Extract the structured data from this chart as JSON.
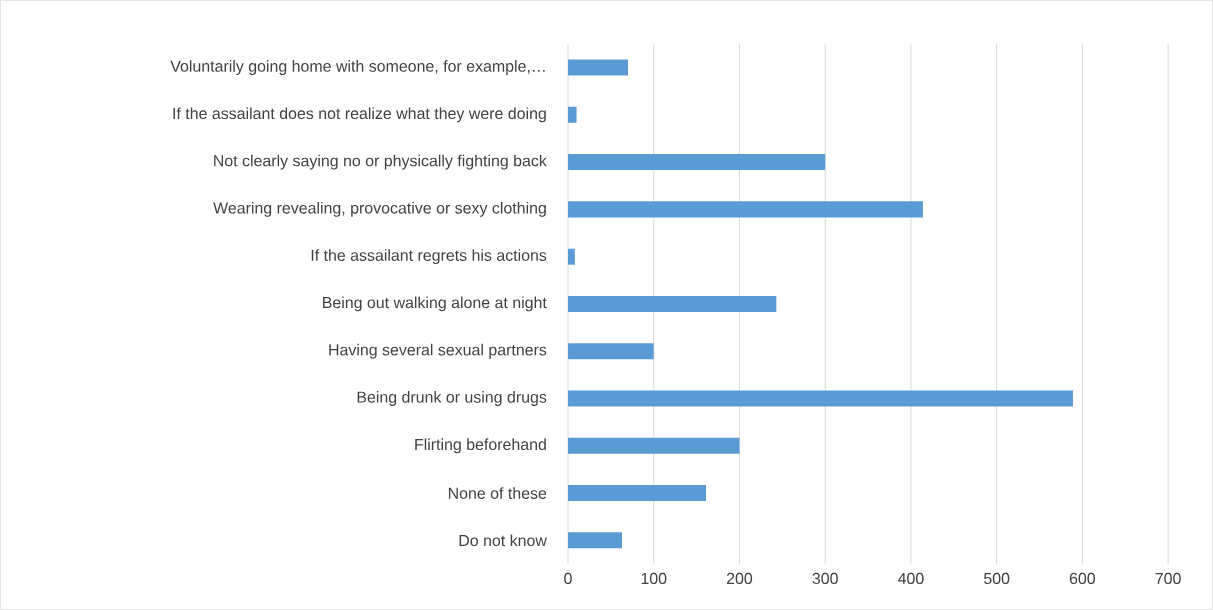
{
  "chart_data": {
    "type": "bar",
    "orientation": "horizontal",
    "categories": [
      "Voluntarily going home with someone, for example,…",
      "If the assailant does not realize what they were doing",
      "Not clearly saying no or physically fighting back",
      "Wearing revealing, provocative or sexy clothing",
      "If the assailant regrets his actions",
      "Being out walking alone at night",
      "Having several sexual partners",
      "Being drunk or using drugs",
      "Flirting beforehand",
      "None of these",
      "Do not know"
    ],
    "values": [
      70,
      10,
      300,
      414,
      8,
      243,
      100,
      589,
      200,
      161,
      63
    ],
    "color": "#5b9bd5",
    "xlim": [
      0,
      700
    ],
    "xticks": [
      0,
      100,
      200,
      300,
      400,
      500,
      600,
      700
    ],
    "grid": "x"
  }
}
